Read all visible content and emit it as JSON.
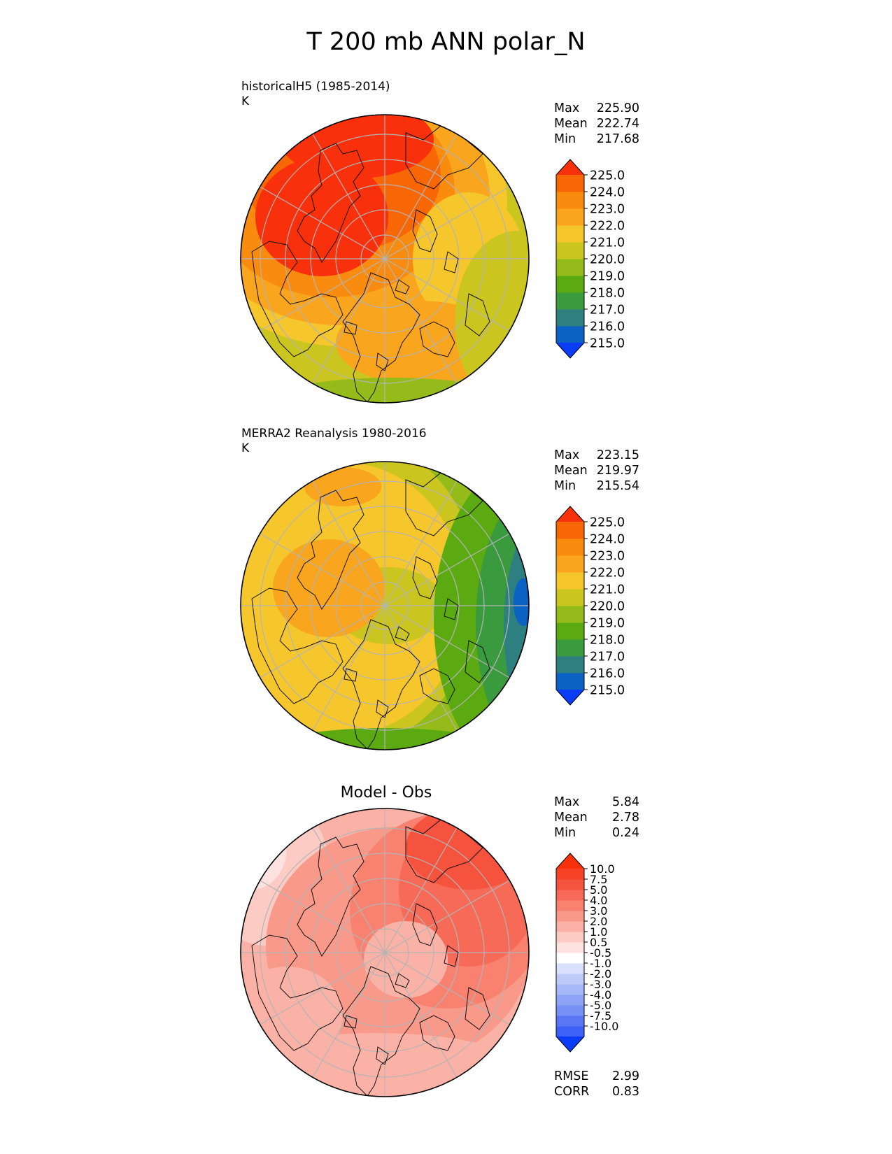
{
  "title": "T 200 mb ANN polar_N",
  "colors": {
    "sequential": [
      "#0a3cf5",
      "#0b62c2",
      "#2e8080",
      "#3a9a3e",
      "#5caa12",
      "#95bb1b",
      "#cbc520",
      "#f6c62d",
      "#f9a51d",
      "#f98c0e",
      "#f86706",
      "#f8300b"
    ],
    "diverging": [
      "#0a3cf5",
      "#3f60f6",
      "#5a76f5",
      "#7790f5",
      "#8ea4f6",
      "#a6b8f7",
      "#becbf8",
      "#d8e0fb",
      "#ffffff",
      "#fde2df",
      "#fccbc3",
      "#fbb2a6",
      "#f9998a",
      "#f88170",
      "#f76a57",
      "#f6533f",
      "#f64328",
      "#f8300b"
    ],
    "grid": "#b4b4b4"
  },
  "panels": [
    {
      "id": "test",
      "subtitle_left": "historicalH5 (1985-2014)\nK",
      "stats": [
        {
          "label": "Max",
          "value": "225.90"
        },
        {
          "label": "Mean",
          "value": "222.74"
        },
        {
          "label": "Min",
          "value": "217.68"
        }
      ],
      "colorbar_ticks": [
        "225.0",
        "224.0",
        "223.0",
        "222.0",
        "221.0",
        "220.0",
        "219.0",
        "218.0",
        "217.0",
        "216.0",
        "215.0"
      ]
    },
    {
      "id": "ref",
      "subtitle_left": "MERRA2 Reanalysis 1980-2016\nK",
      "stats": [
        {
          "label": "Max",
          "value": "223.15"
        },
        {
          "label": "Mean",
          "value": "219.97"
        },
        {
          "label": "Min",
          "value": "215.54"
        }
      ],
      "colorbar_ticks": [
        "225.0",
        "224.0",
        "223.0",
        "222.0",
        "221.0",
        "220.0",
        "219.0",
        "218.0",
        "217.0",
        "216.0",
        "215.0"
      ]
    },
    {
      "id": "diff",
      "title_center": "Model - Obs",
      "stats": [
        {
          "label": "Max",
          "value": "5.84"
        },
        {
          "label": "Mean",
          "value": "2.78"
        },
        {
          "label": "Min",
          "value": "0.24"
        }
      ],
      "colorbar_ticks": [
        "10.0",
        "7.5",
        "5.0",
        "4.0",
        "3.0",
        "2.0",
        "1.0",
        "0.5",
        "-0.5",
        "-1.0",
        "-2.0",
        "-3.0",
        "-4.0",
        "-5.0",
        "-7.5",
        "-10.0"
      ],
      "bottom_stats": [
        {
          "label": "RMSE",
          "value": "2.99"
        },
        {
          "label": "CORR",
          "value": "0.83"
        }
      ]
    }
  ],
  "chart_data": [
    {
      "type": "heatmap",
      "projection": "north polar stereographic",
      "title": "historicalH5 (1985-2014)",
      "units": "K",
      "levels": [
        215,
        216,
        217,
        218,
        219,
        220,
        221,
        222,
        223,
        224,
        225
      ],
      "summary": {
        "max": 225.9,
        "mean": 222.74,
        "min": 217.68
      }
    },
    {
      "type": "heatmap",
      "projection": "north polar stereographic",
      "title": "MERRA2 Reanalysis 1980-2016",
      "units": "K",
      "levels": [
        215,
        216,
        217,
        218,
        219,
        220,
        221,
        222,
        223,
        224,
        225
      ],
      "summary": {
        "max": 223.15,
        "mean": 219.97,
        "min": 215.54
      }
    },
    {
      "type": "heatmap",
      "projection": "north polar stereographic",
      "title": "Model - Obs",
      "levels": [
        -10.0,
        -7.5,
        -5.0,
        -4.0,
        -3.0,
        -2.0,
        -1.0,
        -0.5,
        0.5,
        1.0,
        2.0,
        3.0,
        4.0,
        5.0,
        7.5,
        10.0
      ],
      "summary": {
        "max": 5.84,
        "mean": 2.78,
        "min": 0.24,
        "rmse": 2.99,
        "corr": 0.83
      }
    }
  ]
}
